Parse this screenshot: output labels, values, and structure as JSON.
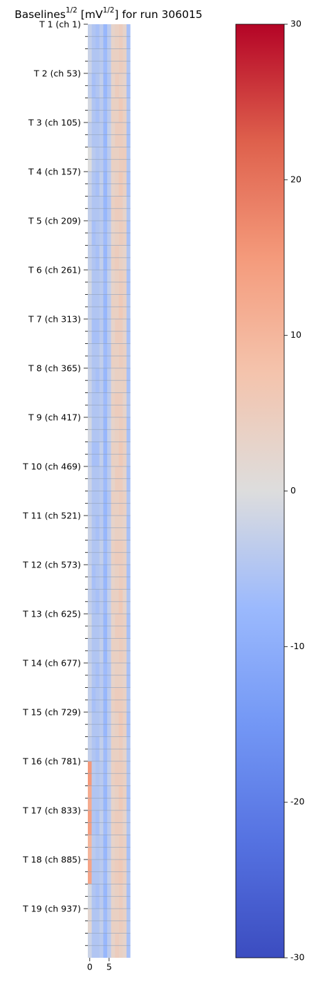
{
  "chart_data": {
    "type": "heatmap",
    "title": [
      "Baselines",
      "1/2",
      " [mV",
      "1/2",
      "] for run 306015"
    ],
    "title_superscript": [
      false,
      true,
      false,
      true,
      false
    ],
    "colormap": "coolwarm",
    "x": [
      0,
      1,
      2,
      3,
      4,
      5,
      6,
      7,
      8,
      9,
      10
    ],
    "xlim": [
      -0.5,
      10.5
    ],
    "xticks": [
      0,
      5
    ],
    "y": [
      1,
      27,
      53,
      79,
      105,
      131,
      157,
      183,
      209,
      235,
      261,
      287,
      313,
      339,
      365,
      391,
      417,
      443,
      469,
      495,
      521,
      547,
      573,
      599,
      625,
      651,
      677,
      703,
      729,
      755,
      781,
      807,
      833,
      859,
      885,
      911,
      937,
      963
    ],
    "row_span": 26,
    "ylim": [
      1,
      989
    ],
    "yticks": [
      {
        "value": 1,
        "label": "T 1 (ch 1)"
      },
      {
        "value": 53,
        "label": "T 2 (ch 53)"
      },
      {
        "value": 105,
        "label": "T 3 (ch 105)"
      },
      {
        "value": 157,
        "label": "T 4 (ch 157)"
      },
      {
        "value": 209,
        "label": "T 5 (ch 209)"
      },
      {
        "value": 261,
        "label": "T 6 (ch 261)"
      },
      {
        "value": 313,
        "label": "T 7 (ch 313)"
      },
      {
        "value": 365,
        "label": "T 8 (ch 365)"
      },
      {
        "value": 417,
        "label": "T 9 (ch 417)"
      },
      {
        "value": 469,
        "label": "T 10 (ch 469)"
      },
      {
        "value": 521,
        "label": "T 11 (ch 521)"
      },
      {
        "value": 573,
        "label": "T 12 (ch 573)"
      },
      {
        "value": 625,
        "label": "T 13 (ch 625)"
      },
      {
        "value": 677,
        "label": "T 14 (ch 677)"
      },
      {
        "value": 729,
        "label": "T 15 (ch 729)"
      },
      {
        "value": 781,
        "label": "T 16 (ch 781)"
      },
      {
        "value": 833,
        "label": "T 17 (ch 833)"
      },
      {
        "value": 885,
        "label": "T 18 (ch 885)"
      },
      {
        "value": 937,
        "label": "T 19 (ch 937)"
      }
    ],
    "minor_yticks": [
      14,
      27,
      40,
      66,
      79,
      92,
      118,
      131,
      144,
      170,
      183,
      196,
      222,
      235,
      248,
      274,
      287,
      300,
      326,
      339,
      352,
      378,
      391,
      404,
      430,
      443,
      456,
      482,
      495,
      508,
      534,
      547,
      560,
      586,
      599,
      612,
      638,
      651,
      664,
      690,
      703,
      716,
      742,
      755,
      768,
      794,
      807,
      820,
      846,
      859,
      872,
      898,
      911,
      924,
      950,
      963,
      976
    ],
    "grid": true,
    "z": [
      [
        -3,
        -5,
        -6,
        -4,
        -8,
        -4,
        3,
        4,
        5,
        3,
        -6
      ],
      [
        -2,
        -5,
        -5,
        -4,
        -7,
        -4,
        4,
        4,
        5,
        4,
        -5
      ],
      [
        -3,
        -6,
        -5,
        -3,
        -8,
        -5,
        3,
        5,
        4,
        3,
        -6
      ],
      [
        -1,
        -5,
        -6,
        -4,
        -7,
        -4,
        4,
        4,
        6,
        4,
        -5
      ],
      [
        -3,
        -5,
        -5,
        -4,
        -8,
        -3,
        3,
        5,
        5,
        4,
        -6
      ],
      [
        0,
        -4,
        -5,
        -4,
        -7,
        -4,
        4,
        4,
        5,
        5,
        -5
      ],
      [
        -2,
        -5,
        -6,
        -3,
        -8,
        -4,
        3,
        4,
        6,
        4,
        -6
      ],
      [
        -3,
        -5,
        -5,
        -4,
        -8,
        -5,
        4,
        5,
        5,
        3,
        -5
      ],
      [
        -2,
        -6,
        -5,
        -4,
        -7,
        -4,
        3,
        4,
        5,
        4,
        -6
      ],
      [
        -3,
        -5,
        -6,
        -3,
        -8,
        -4,
        4,
        5,
        4,
        3,
        -5
      ],
      [
        -1,
        -5,
        -5,
        -4,
        -7,
        -3,
        3,
        4,
        5,
        4,
        -6
      ],
      [
        -3,
        -5,
        -5,
        -4,
        -8,
        -4,
        4,
        4,
        6,
        4,
        -5
      ],
      [
        -2,
        -6,
        -6,
        -4,
        -8,
        -4,
        3,
        5,
        5,
        3,
        -6
      ],
      [
        -3,
        -5,
        -5,
        -3,
        -7,
        -5,
        4,
        4,
        5,
        4,
        -5
      ],
      [
        -2,
        -5,
        -6,
        -4,
        -8,
        -4,
        3,
        4,
        4,
        4,
        -6
      ],
      [
        -3,
        -5,
        -5,
        -4,
        -7,
        -4,
        4,
        5,
        5,
        3,
        -5
      ],
      [
        -1,
        -5,
        -5,
        -4,
        -8,
        -3,
        3,
        4,
        5,
        4,
        -6
      ],
      [
        -3,
        -6,
        -6,
        -3,
        -8,
        -4,
        4,
        4,
        6,
        4,
        -5
      ],
      [
        -2,
        -5,
        -5,
        -4,
        -7,
        -4,
        3,
        5,
        5,
        3,
        -6
      ],
      [
        -3,
        -5,
        -5,
        -4,
        -8,
        -5,
        4,
        4,
        5,
        4,
        -5
      ],
      [
        -2,
        -5,
        -6,
        -4,
        -8,
        -4,
        3,
        4,
        4,
        3,
        -6
      ],
      [
        -3,
        -5,
        -5,
        -3,
        -7,
        -4,
        4,
        5,
        5,
        4,
        -5
      ],
      [
        -2,
        -6,
        -5,
        -4,
        -8,
        -4,
        3,
        4,
        5,
        4,
        -6
      ],
      [
        -3,
        -5,
        -6,
        -4,
        -7,
        -3,
        4,
        4,
        6,
        3,
        -5
      ],
      [
        -1,
        -5,
        -5,
        -4,
        -8,
        -4,
        3,
        5,
        5,
        4,
        -6
      ],
      [
        -3,
        -5,
        -5,
        -3,
        -8,
        -4,
        4,
        4,
        5,
        4,
        -5
      ],
      [
        -2,
        -5,
        -6,
        -4,
        -7,
        -5,
        3,
        4,
        4,
        3,
        -6
      ],
      [
        -3,
        -6,
        -5,
        -4,
        -8,
        -4,
        4,
        5,
        5,
        4,
        -5
      ],
      [
        -2,
        -5,
        -5,
        -4,
        -8,
        -4,
        3,
        4,
        6,
        4,
        -6
      ],
      [
        -3,
        -5,
        -6,
        -3,
        -7,
        -4,
        4,
        4,
        5,
        3,
        -5
      ],
      [
        15,
        -4,
        -5,
        -4,
        -7,
        -3,
        4,
        5,
        5,
        4,
        -5
      ],
      [
        12,
        -5,
        -5,
        -4,
        -8,
        -4,
        3,
        4,
        6,
        4,
        -6
      ],
      [
        14,
        -5,
        -6,
        -3,
        -7,
        -4,
        4,
        5,
        5,
        3,
        -5
      ],
      [
        10,
        -4,
        -5,
        -4,
        -8,
        -4,
        3,
        4,
        5,
        4,
        -6
      ],
      [
        13,
        -5,
        -5,
        -4,
        -7,
        -3,
        4,
        5,
        6,
        4,
        -5
      ],
      [
        -1,
        -5,
        -6,
        -4,
        -8,
        -4,
        3,
        4,
        5,
        3,
        -6
      ],
      [
        2,
        -5,
        -5,
        -3,
        -7,
        -4,
        4,
        4,
        5,
        4,
        -5
      ],
      [
        -2,
        -5,
        -5,
        -4,
        -8,
        -4,
        3,
        5,
        4,
        3,
        -6
      ]
    ],
    "clim": [
      -30,
      30
    ],
    "cticks": [
      -30,
      -20,
      -10,
      0,
      10,
      20,
      30
    ]
  }
}
